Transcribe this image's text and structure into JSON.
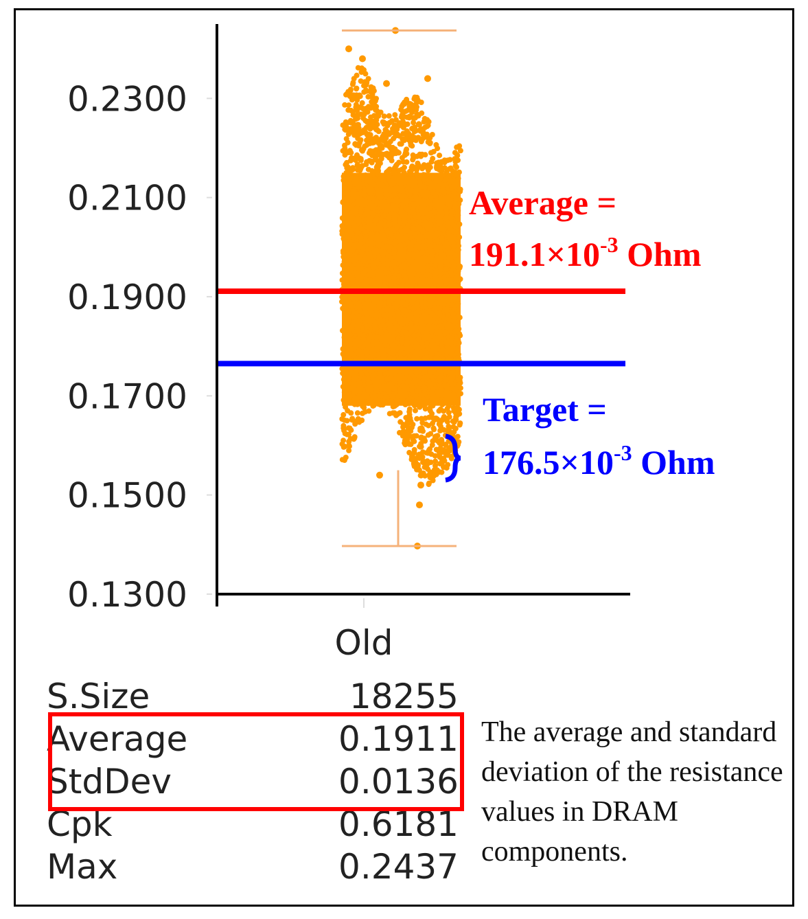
{
  "chart_data": {
    "type": "scatter",
    "title": "",
    "xlabel": "",
    "ylabel": "",
    "categories": [
      "Old"
    ],
    "ylim": [
      0.13,
      0.245
    ],
    "yticks": [
      "0.2300",
      "0.2100",
      "0.1900",
      "0.1700",
      "0.1500",
      "0.1300"
    ],
    "ytick_values": [
      0.23,
      0.21,
      0.19,
      0.17,
      0.15,
      0.13
    ],
    "series": [
      {
        "name": "Old",
        "color": "#ff9900",
        "sample_size": 18255,
        "dense_range": [
          0.168,
          0.215
        ],
        "spread_range": [
          0.152,
          0.238
        ],
        "min_whisker": 0.1397,
        "max_whisker": 0.2437
      }
    ],
    "reference_lines": [
      {
        "name": "average",
        "value": 0.1911,
        "color": "#ff0000",
        "label_line1": "Average =",
        "label_line2": "191.1×10",
        "exponent": "-3",
        "unit": " Ohm"
      },
      {
        "name": "target",
        "value": 0.1765,
        "color": "#0000ff",
        "label_line1": "Target =",
        "label_line2": "176.5×10",
        "exponent": "-3",
        "unit": " Ohm"
      }
    ]
  },
  "stats": {
    "header": "Old",
    "rows": [
      {
        "label": "S.Size",
        "value": "18255"
      },
      {
        "label": "Average",
        "value": "0.1911"
      },
      {
        "label": "StdDev",
        "value": "0.0136"
      },
      {
        "label": "Cpk",
        "value": "0.6181"
      },
      {
        "label": "Max",
        "value": "0.2437"
      }
    ]
  },
  "caption": "The average and standard deviation of the resistance values in DRAM components.",
  "colors": {
    "highlight": "#ff0000",
    "points": "#ff9900"
  }
}
